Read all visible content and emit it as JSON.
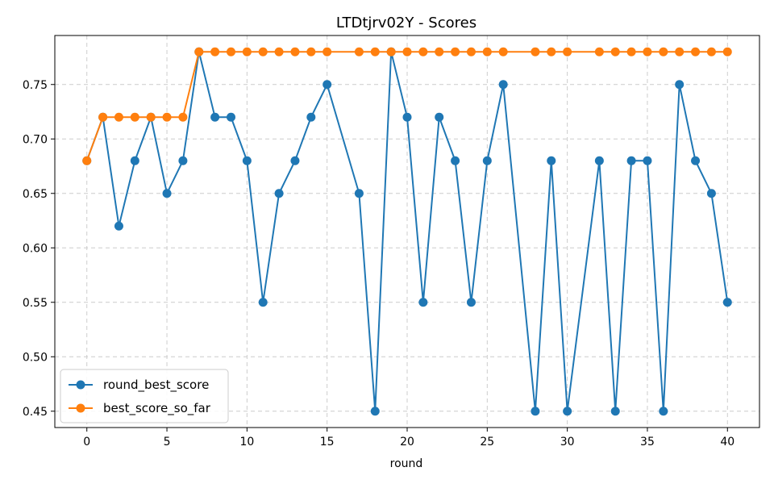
{
  "chart_data": {
    "type": "line",
    "title": "LTDtjrv02Y - Scores",
    "xlabel": "round",
    "ylabel": "",
    "xlim": [
      -2,
      42
    ],
    "ylim": [
      0.435,
      0.795
    ],
    "xticks": [
      0,
      5,
      10,
      15,
      20,
      25,
      30,
      35,
      40
    ],
    "yticks": [
      0.45,
      0.5,
      0.55,
      0.6,
      0.65,
      0.7,
      0.75
    ],
    "ytick_labels": [
      "0.45",
      "0.50",
      "0.55",
      "0.60",
      "0.65",
      "0.70",
      "0.75"
    ],
    "grid": true,
    "legend_position": "lower-left",
    "series": [
      {
        "name": "round_best_score",
        "color": "#1f77b4",
        "x": [
          0,
          1,
          2,
          3,
          4,
          5,
          6,
          7,
          8,
          9,
          10,
          11,
          12,
          13,
          14,
          15,
          17,
          18,
          19,
          20,
          21,
          22,
          23,
          24,
          25,
          26,
          28,
          29,
          30,
          32,
          33,
          34,
          35,
          36,
          37,
          38,
          39,
          40
        ],
        "y": [
          0.68,
          0.72,
          0.62,
          0.68,
          0.72,
          0.65,
          0.68,
          0.78,
          0.72,
          0.72,
          0.68,
          0.55,
          0.65,
          0.68,
          0.72,
          0.75,
          0.65,
          0.45,
          0.78,
          0.72,
          0.55,
          0.72,
          0.68,
          0.55,
          0.68,
          0.75,
          0.45,
          0.68,
          0.45,
          0.68,
          0.45,
          0.68,
          0.68,
          0.45,
          0.75,
          0.68,
          0.65,
          0.55
        ]
      },
      {
        "name": "best_score_so_far",
        "color": "#ff7f0e",
        "x": [
          0,
          1,
          2,
          3,
          4,
          5,
          6,
          7,
          8,
          9,
          10,
          11,
          12,
          13,
          14,
          15,
          17,
          18,
          19,
          20,
          21,
          22,
          23,
          24,
          25,
          26,
          28,
          29,
          30,
          32,
          33,
          34,
          35,
          36,
          37,
          38,
          39,
          40
        ],
        "y": [
          0.68,
          0.72,
          0.72,
          0.72,
          0.72,
          0.72,
          0.72,
          0.78,
          0.78,
          0.78,
          0.78,
          0.78,
          0.78,
          0.78,
          0.78,
          0.78,
          0.78,
          0.78,
          0.78,
          0.78,
          0.78,
          0.78,
          0.78,
          0.78,
          0.78,
          0.78,
          0.78,
          0.78,
          0.78,
          0.78,
          0.78,
          0.78,
          0.78,
          0.78,
          0.78,
          0.78,
          0.78,
          0.78
        ]
      }
    ]
  }
}
